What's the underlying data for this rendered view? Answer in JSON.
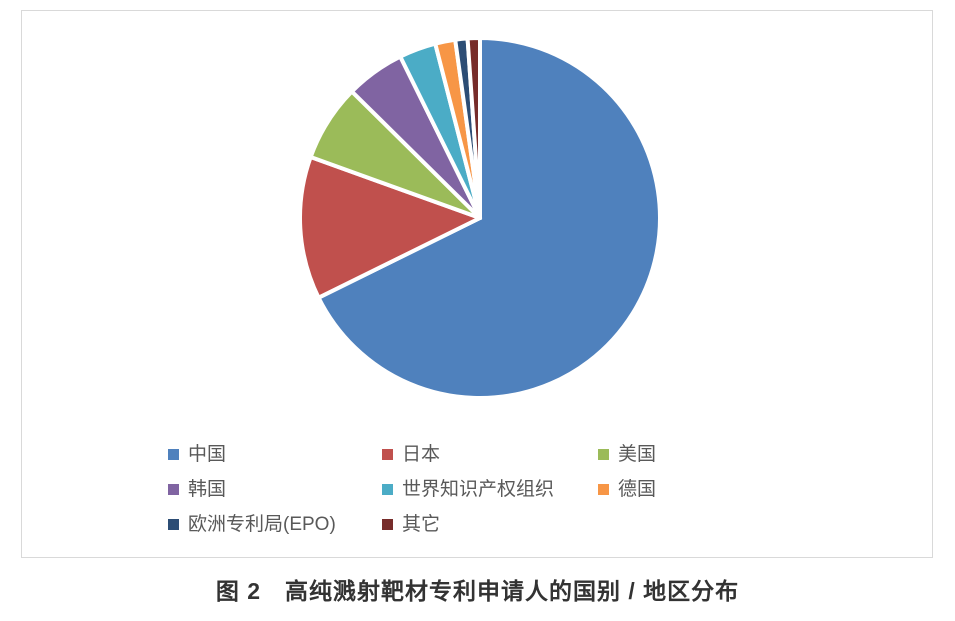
{
  "chart_data": {
    "type": "pie",
    "title": "",
    "categories": [
      "中国",
      "日本",
      "美国",
      "韩国",
      "世界知识产权组织",
      "德国",
      "欧洲专利局(EPO)",
      "其它"
    ],
    "values": [
      67.7,
      12.8,
      6.9,
      5.3,
      3.3,
      1.8,
      1.1,
      1.1
    ],
    "unit": "percent",
    "colors": [
      "#4F81BD",
      "#C0504D",
      "#9BBB59",
      "#8064A2",
      "#4BACC6",
      "#F79646",
      "#2C4D75",
      "#772C2A"
    ],
    "start_angle_deg": 0,
    "direction": "clockwise",
    "slice_border_color": "#FFFFFF",
    "legend_position": "bottom",
    "legend_text_color": "#595959"
  },
  "figure": {
    "caption": "图 2　高纯溅射靶材专利申请人的国别 / 地区分布",
    "border_color": "#D9D9D9"
  }
}
